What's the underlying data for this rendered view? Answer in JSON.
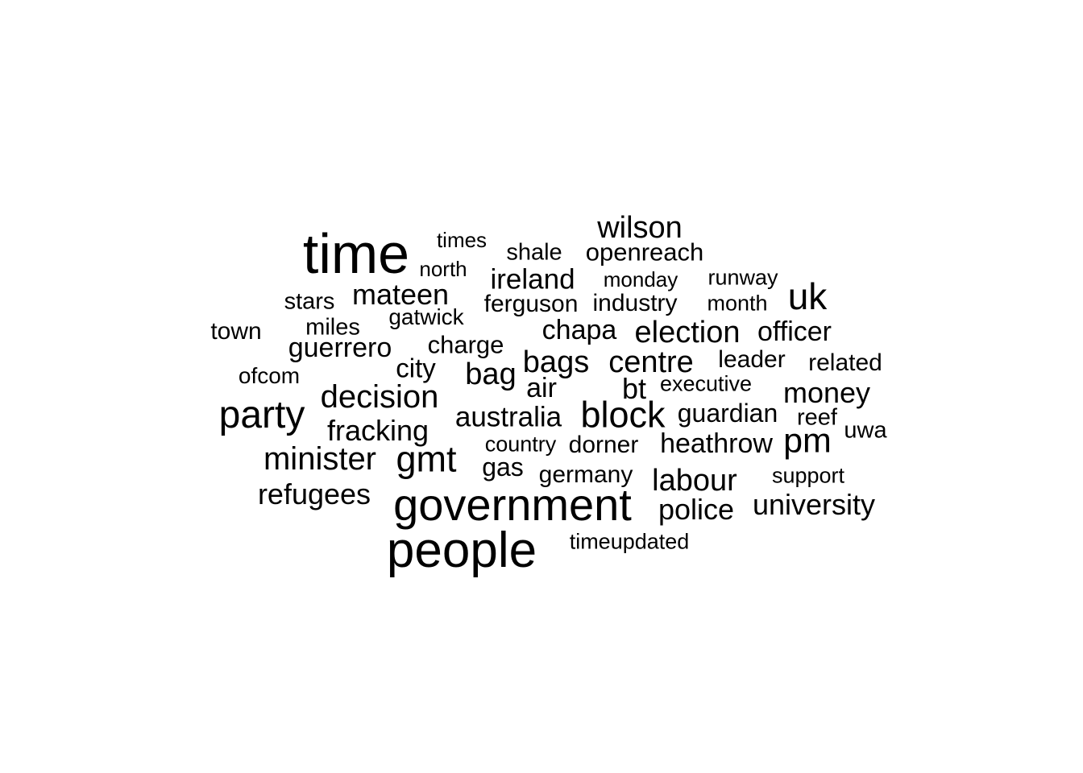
{
  "text_color": "#000000",
  "background_color": "#ffffff",
  "words": [
    {
      "id": "time",
      "text": "time"
    },
    {
      "id": "wilson",
      "text": "wilson"
    },
    {
      "id": "times",
      "text": "times"
    },
    {
      "id": "shale",
      "text": "shale"
    },
    {
      "id": "openreach",
      "text": "openreach"
    },
    {
      "id": "north",
      "text": "north"
    },
    {
      "id": "ireland",
      "text": "ireland"
    },
    {
      "id": "monday",
      "text": "monday"
    },
    {
      "id": "runway",
      "text": "runway"
    },
    {
      "id": "uk",
      "text": "uk"
    },
    {
      "id": "stars",
      "text": "stars"
    },
    {
      "id": "mateen",
      "text": "mateen"
    },
    {
      "id": "ferguson",
      "text": "ferguson"
    },
    {
      "id": "industry",
      "text": "industry"
    },
    {
      "id": "month",
      "text": "month"
    },
    {
      "id": "gatwick",
      "text": "gatwick"
    },
    {
      "id": "town",
      "text": "town"
    },
    {
      "id": "miles",
      "text": "miles"
    },
    {
      "id": "chapa",
      "text": "chapa"
    },
    {
      "id": "election",
      "text": "election"
    },
    {
      "id": "officer",
      "text": "officer"
    },
    {
      "id": "guerrero",
      "text": "guerrero"
    },
    {
      "id": "charge",
      "text": "charge"
    },
    {
      "id": "bags",
      "text": "bags"
    },
    {
      "id": "centre",
      "text": "centre"
    },
    {
      "id": "leader",
      "text": "leader"
    },
    {
      "id": "related",
      "text": "related"
    },
    {
      "id": "ofcom",
      "text": "ofcom"
    },
    {
      "id": "city",
      "text": "city"
    },
    {
      "id": "bag",
      "text": "bag"
    },
    {
      "id": "air",
      "text": "air"
    },
    {
      "id": "bt",
      "text": "bt"
    },
    {
      "id": "executive",
      "text": "executive"
    },
    {
      "id": "money",
      "text": "money"
    },
    {
      "id": "decision",
      "text": "decision"
    },
    {
      "id": "party",
      "text": "party"
    },
    {
      "id": "australia",
      "text": "australia"
    },
    {
      "id": "block",
      "text": "block"
    },
    {
      "id": "guardian",
      "text": "guardian"
    },
    {
      "id": "reef",
      "text": "reef"
    },
    {
      "id": "fracking",
      "text": "fracking"
    },
    {
      "id": "uwa",
      "text": "uwa"
    },
    {
      "id": "country",
      "text": "country"
    },
    {
      "id": "dorner",
      "text": "dorner"
    },
    {
      "id": "heathrow",
      "text": "heathrow"
    },
    {
      "id": "pm",
      "text": "pm"
    },
    {
      "id": "minister",
      "text": "minister"
    },
    {
      "id": "gmt",
      "text": "gmt"
    },
    {
      "id": "gas",
      "text": "gas"
    },
    {
      "id": "germany",
      "text": "germany"
    },
    {
      "id": "support",
      "text": "support"
    },
    {
      "id": "labour",
      "text": "labour"
    },
    {
      "id": "refugees",
      "text": "refugees"
    },
    {
      "id": "government",
      "text": "government"
    },
    {
      "id": "police",
      "text": "police"
    },
    {
      "id": "university",
      "text": "university"
    },
    {
      "id": "people",
      "text": "people"
    },
    {
      "id": "timeupdated",
      "text": "timeupdated"
    }
  ]
}
